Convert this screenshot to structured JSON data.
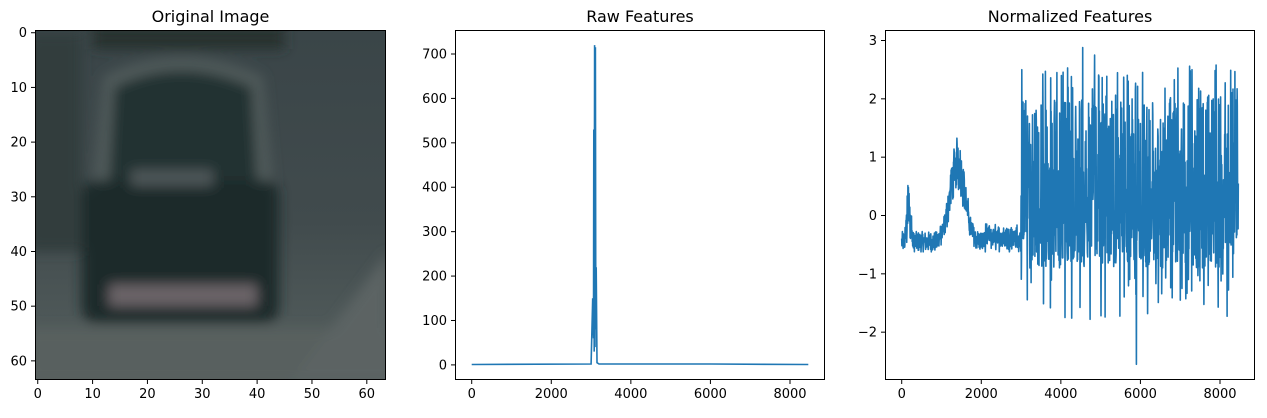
{
  "chart_data": [
    {
      "type": "image",
      "title": "Original Image",
      "xlim": [
        -0.5,
        63.5
      ],
      "ylim": [
        63.5,
        -0.5
      ],
      "xticks": [
        "0",
        "10",
        "20",
        "30",
        "40",
        "50",
        "60"
      ],
      "yticks": [
        "0",
        "10",
        "20",
        "30",
        "40",
        "50",
        "60"
      ],
      "image_description_colors": {
        "background": "#3f4a4c",
        "car_body": "#1c2a2a",
        "road": "#4c5658"
      }
    },
    {
      "type": "line",
      "title": "Raw Features",
      "xlim": [
        0,
        8460
      ],
      "ylim": [
        0,
        720
      ],
      "xticks": [
        "0",
        "2000",
        "4000",
        "6000",
        "8000"
      ],
      "yticks": [
        "0",
        "100",
        "200",
        "300",
        "400",
        "500",
        "600",
        "700"
      ],
      "series": [
        {
          "color": "#1f77b4",
          "x": [
            0,
            3000,
            3040,
            3060,
            3070,
            3080,
            3090,
            3100,
            3110,
            3120,
            3130,
            3150,
            3200,
            4800,
            6000,
            8460
          ],
          "y": [
            1,
            2,
            150,
            60,
            530,
            30,
            720,
            40,
            715,
            80,
            220,
            5,
            2,
            2,
            2,
            1
          ]
        }
      ]
    },
    {
      "type": "line",
      "title": "Normalized Features",
      "xlim": [
        0,
        8460
      ],
      "ylim": [
        -2.6,
        2.9
      ],
      "xticks": [
        "0",
        "2000",
        "4000",
        "6000",
        "8000"
      ],
      "yticks": [
        "3",
        "2",
        "1",
        "0",
        "−1",
        "−2"
      ],
      "series": [
        {
          "color": "#1f77b4",
          "description": "dense noisy signal; low-variance band -0.6..-0.3 up to x~3000 with bumps near 200 (to 1.05) and 1400 (to 1.55); high-variance band from ~3000 to 8460 spanning about -1.3 to 2.5 with outliers to 2.9 and -2.55"
        }
      ]
    }
  ]
}
